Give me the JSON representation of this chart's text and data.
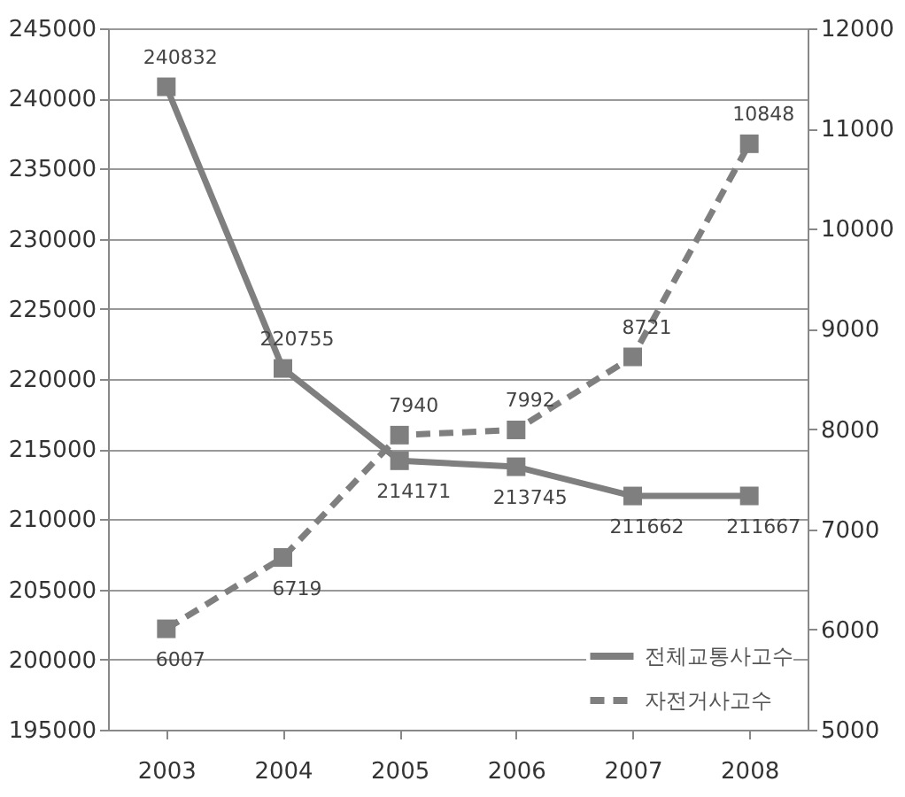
{
  "chart_data": {
    "type": "line",
    "categories": [
      "2003",
      "2004",
      "2005",
      "2006",
      "2007",
      "2008"
    ],
    "series": [
      {
        "name": "전체교통사고수",
        "color": "#7f7f7f",
        "line_style": "solid",
        "values": [
          240832,
          220755,
          214171,
          213745,
          211662,
          211667
        ]
      },
      {
        "name": "자전거사고수",
        "color": "#7f7f7f",
        "line_style": "dashed",
        "axis": "y2",
        "values": [
          6007,
          6719,
          7940,
          7992,
          8721,
          10848
        ]
      }
    ],
    "ylim": [
      195000,
      245000
    ],
    "yticks": [
      195000,
      200000,
      205000,
      210000,
      215000,
      220000,
      225000,
      230000,
      235000,
      240000,
      245000
    ],
    "y2lim": [
      5000,
      12000
    ],
    "y2ticks": [
      5000,
      6000,
      7000,
      8000,
      9000,
      10000,
      11000,
      12000
    ],
    "marker": "square",
    "grid": "y",
    "legend": "bottom right",
    "data_labels": true
  }
}
